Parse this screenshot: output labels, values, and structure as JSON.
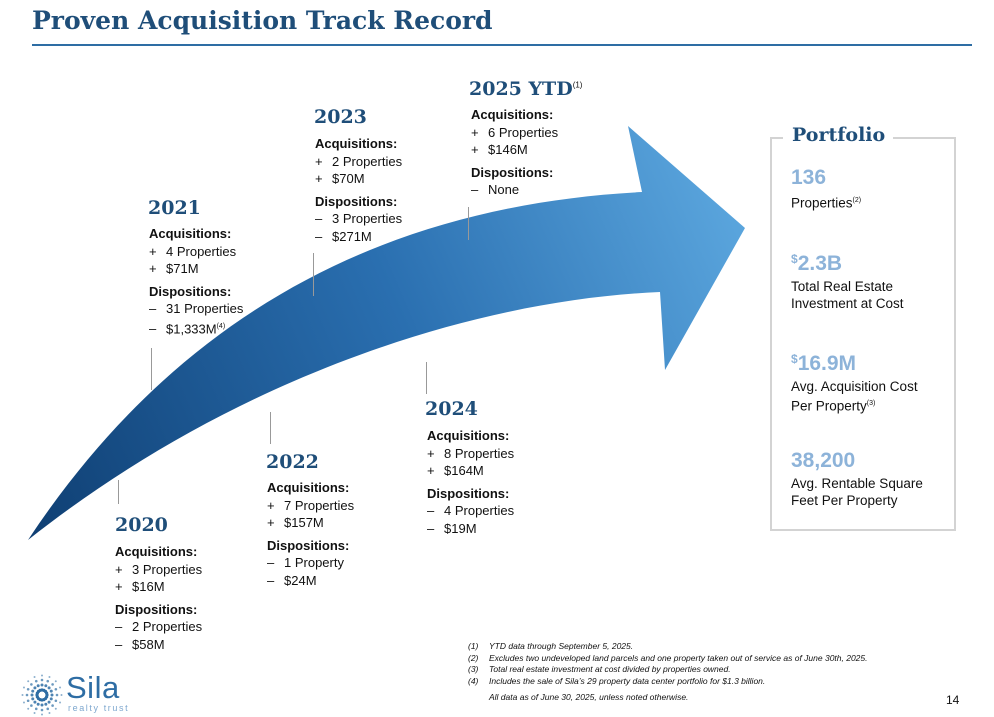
{
  "title": "Proven Acquisition Track Record",
  "years": [
    {
      "year": "2020",
      "acq_label": "Acquisitions:",
      "acq": [
        "3 Properties",
        "$16M"
      ],
      "disp_label": "Dispositions:",
      "disp": [
        "2 Properties",
        "$58M"
      ]
    },
    {
      "year": "2021",
      "acq_label": "Acquisitions:",
      "acq": [
        "4 Properties",
        "$71M"
      ],
      "disp_label": "Dispositions:",
      "disp": [
        "31 Properties",
        "$1,333M"
      ],
      "disp_last_note": "(4)"
    },
    {
      "year": "2022",
      "acq_label": "Acquisitions:",
      "acq": [
        "7 Properties",
        "$157M"
      ],
      "disp_label": "Dispositions:",
      "disp": [
        "1 Property",
        "$24M"
      ]
    },
    {
      "year": "2023",
      "acq_label": "Acquisitions:",
      "acq": [
        "2 Properties",
        "$70M"
      ],
      "disp_label": "Dispositions:",
      "disp": [
        "3 Properties",
        "$271M"
      ]
    },
    {
      "year": "2024",
      "acq_label": "Acquisitions:",
      "acq": [
        "8 Properties",
        "$164M"
      ],
      "disp_label": "Dispositions:",
      "disp": [
        "4 Properties",
        "$19M"
      ]
    },
    {
      "year": "2025 YTD",
      "year_note": "(1)",
      "acq_label": "Acquisitions:",
      "acq": [
        "6 Properties",
        "$146M"
      ],
      "disp_label": "Dispositions:",
      "disp": [
        "None"
      ]
    }
  ],
  "markers": {
    "plus": "+",
    "minus": "–"
  },
  "portfolio": {
    "title": "Portfolio",
    "stats": [
      {
        "value": "136",
        "label_lines": [
          "Properties"
        ],
        "note": "(2)"
      },
      {
        "prefix": "$",
        "value": "2.3B",
        "label_lines": [
          "Total Real Estate",
          "Investment at Cost"
        ]
      },
      {
        "prefix": "$",
        "value": "16.9M",
        "label_lines": [
          "Avg. Acquisition Cost",
          "Per Property"
        ],
        "note": "(3)"
      },
      {
        "value": "38,200",
        "label_lines": [
          "Avg. Rentable Square",
          "Feet Per Property"
        ]
      }
    ]
  },
  "footnotes": [
    {
      "num": "(1)",
      "text": "YTD data through September 5, 2025."
    },
    {
      "num": "(2)",
      "text": "Excludes two undeveloped land parcels and one property taken out of service as of June 30th, 2025."
    },
    {
      "num": "(3)",
      "text": "Total real estate investment at cost divided by properties owned."
    },
    {
      "num": "(4)",
      "text": "Includes the sale of Sila’s 29 property data center portfolio for $1.3 billion."
    }
  ],
  "data_note": "All data as of June 30, 2025, unless noted otherwise.",
  "page_number": "14",
  "logo": {
    "name": "Sila",
    "tagline": "realty trust"
  },
  "colors": {
    "brand_navy": "#1f4e79",
    "accent_light_blue": "#8db3d9",
    "arrow_dark": "#0f3f73",
    "arrow_light": "#5aa5dd"
  }
}
